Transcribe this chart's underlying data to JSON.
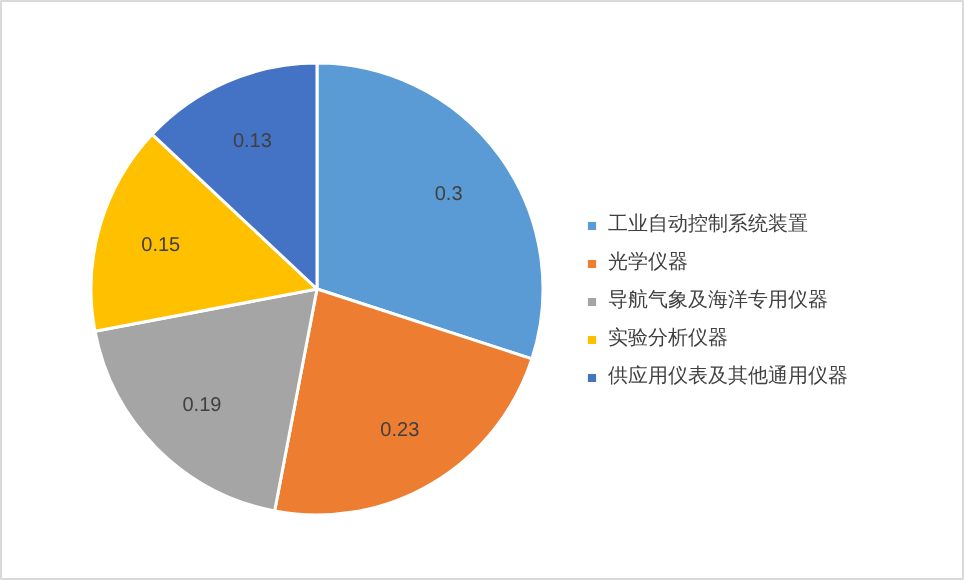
{
  "chart_data": {
    "type": "pie",
    "categories": [
      "工业自动控制系统装置",
      "光学仪器",
      "导航气象及海洋专用仪器",
      "实验分析仪器",
      "供应用仪表及其他通用仪器"
    ],
    "values": [
      0.3,
      0.23,
      0.19,
      0.15,
      0.13
    ],
    "colors": [
      "#5b9bd5",
      "#ed7d31",
      "#a5a5a5",
      "#ffc000",
      "#4472c4"
    ],
    "data_labels": true,
    "legend": "right"
  }
}
